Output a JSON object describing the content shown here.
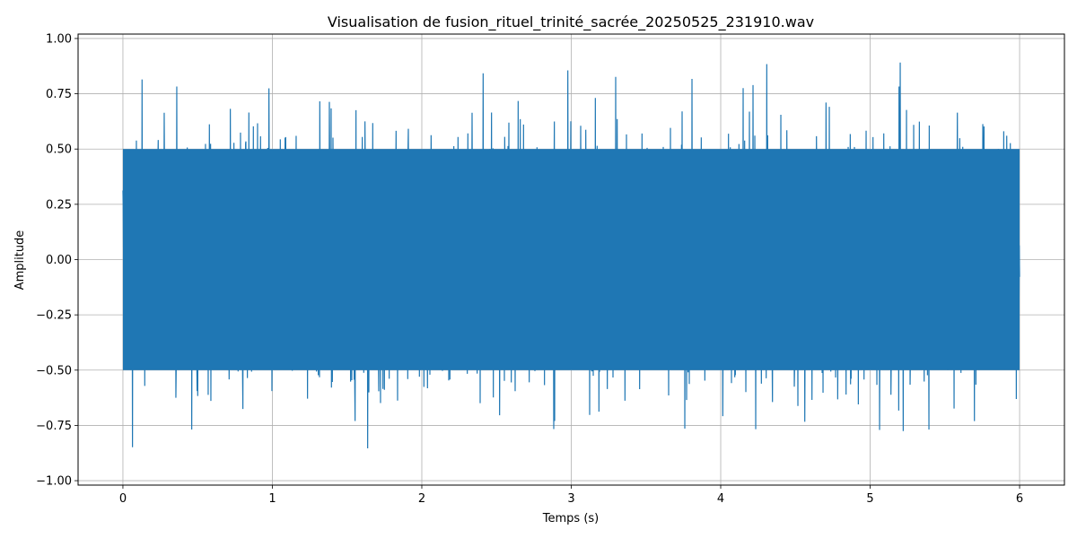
{
  "chart_data": {
    "type": "line",
    "title": "Visualisation de fusion_rituel_trinité_sacrée_20250525_231910.wav",
    "xlabel": "Temps (s)",
    "ylabel": "Amplitude",
    "xlim": [
      -0.3,
      6.3
    ],
    "ylim": [
      -1.02,
      1.02
    ],
    "x_ticks": [
      0,
      1,
      2,
      3,
      4,
      5,
      6
    ],
    "x_tick_labels": [
      "0",
      "1",
      "2",
      "3",
      "4",
      "5",
      "6"
    ],
    "y_ticks": [
      -1.0,
      -0.75,
      -0.5,
      -0.25,
      0.0,
      0.25,
      0.5,
      0.75,
      1.0
    ],
    "y_tick_labels": [
      "−1.00",
      "−0.75",
      "−0.50",
      "−0.25",
      "0.00",
      "0.25",
      "0.50",
      "0.75",
      "1.00"
    ],
    "grid": true,
    "series": [
      {
        "color": "#1f77b4",
        "x_range": [
          0,
          6
        ],
        "approx_max": 0.91,
        "approx_min": -0.92,
        "core_range": [
          -0.5,
          0.5
        ]
      }
    ]
  }
}
